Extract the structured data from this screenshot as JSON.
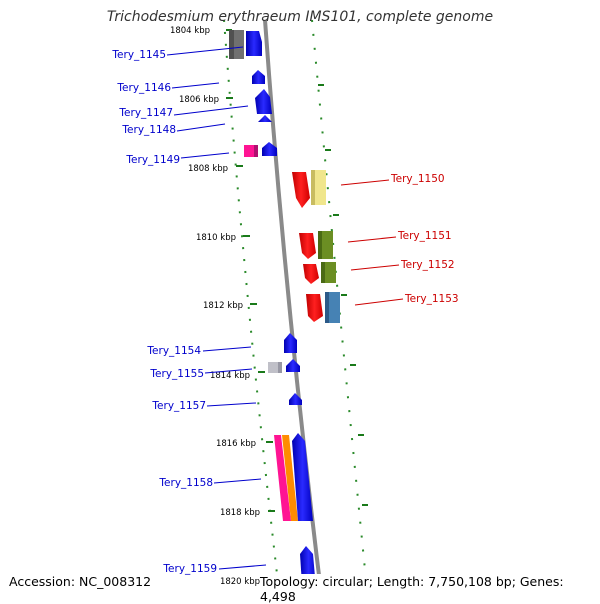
{
  "title": "Trichodesmium erythraeum IMS101, complete genome",
  "accession": "Accession: NC_008312",
  "topology": "Topology: circular; Length: 7,750,108 bp; Genes: 4,498",
  "colors": {
    "backbone": "#8a8a8a",
    "tick": "#2a8a2a",
    "left_label": "#0000cc",
    "right_label": "#cc0000",
    "blue": "#0000ff",
    "red": "#ff0000",
    "olive": "#6b8e23",
    "steel_blue": "#4682b4",
    "khaki": "#f0e68c",
    "magenta": "#ff1493",
    "orange": "#ff8c00",
    "gray": "#808080",
    "light_gray": "#c0c0c8"
  },
  "ticks": [
    "1804 kbp",
    "1806 kbp",
    "1808 kbp",
    "1810 kbp",
    "1812 kbp",
    "1814 kbp",
    "1816 kbp",
    "1818 kbp",
    "1820 kbp"
  ],
  "genes_left": [
    {
      "name": "Tery_1145"
    },
    {
      "name": "Tery_1146"
    },
    {
      "name": "Tery_1147"
    },
    {
      "name": "Tery_1148"
    },
    {
      "name": "Tery_1149"
    },
    {
      "name": "Tery_1154"
    },
    {
      "name": "Tery_1155"
    },
    {
      "name": "Tery_1157"
    },
    {
      "name": "Tery_1158"
    },
    {
      "name": "Tery_1159"
    }
  ],
  "genes_right": [
    {
      "name": "Tery_1150"
    },
    {
      "name": "Tery_1151"
    },
    {
      "name": "Tery_1152"
    },
    {
      "name": "Tery_1153"
    }
  ]
}
